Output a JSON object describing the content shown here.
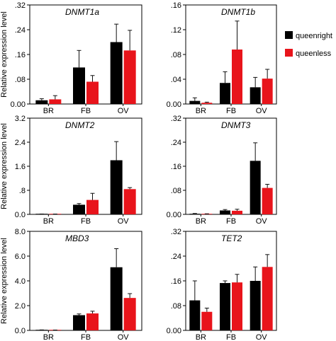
{
  "chart_data": [
    {
      "type": "bar",
      "title": "DNMT1a",
      "ylabel": "Relative expression level",
      "categories": [
        "BR",
        "FB",
        "OV"
      ],
      "ylim": [
        0,
        0.32
      ],
      "yticks": [
        0,
        0.08,
        0.16,
        0.24,
        0.32
      ],
      "yticklabels": [
        "0.00",
        ".08",
        ".16",
        ".24",
        ".32"
      ],
      "series": [
        {
          "name": "queenright",
          "values": [
            0.012,
            0.118,
            0.2
          ],
          "errors": [
            0.005,
            0.055,
            0.058
          ]
        },
        {
          "name": "queenless",
          "values": [
            0.015,
            0.072,
            0.173
          ],
          "errors": [
            0.012,
            0.02,
            0.065
          ]
        }
      ]
    },
    {
      "type": "bar",
      "title": "DNMT1b",
      "ylabel": "",
      "categories": [
        "BR",
        "FB",
        "OV"
      ],
      "ylim": [
        0,
        0.16
      ],
      "yticks": [
        0,
        0.04,
        0.08,
        0.12,
        0.16
      ],
      "yticklabels": [
        "0.00",
        ".04",
        ".08",
        ".12",
        ".16"
      ],
      "series": [
        {
          "name": "queenright",
          "values": [
            0.005,
            0.034,
            0.027
          ],
          "errors": [
            0.005,
            0.018,
            0.016
          ]
        },
        {
          "name": "queenless",
          "values": [
            0.002,
            0.088,
            0.041
          ],
          "errors": [
            0.001,
            0.046,
            0.015
          ]
        }
      ]
    },
    {
      "type": "bar",
      "title": "DNMT2",
      "ylabel": "Relative expression level",
      "categories": [
        "BR",
        "FB",
        "OV"
      ],
      "ylim": [
        0,
        3.2
      ],
      "yticks": [
        0,
        0.8,
        1.6,
        2.4,
        3.2
      ],
      "yticklabels": [
        "0.0",
        ".8",
        "1.6",
        "2.4",
        "3.2"
      ],
      "series": [
        {
          "name": "queenright",
          "values": [
            0.01,
            0.32,
            1.8
          ],
          "errors": [
            0.003,
            0.04,
            0.62
          ]
        },
        {
          "name": "queenless",
          "values": [
            0.008,
            0.48,
            0.84
          ],
          "errors": [
            0.003,
            0.22,
            0.05
          ]
        }
      ]
    },
    {
      "type": "bar",
      "title": "DNMT3",
      "ylabel": "",
      "categories": [
        "BR",
        "FB",
        "OV"
      ],
      "ylim": [
        0,
        0.32
      ],
      "yticks": [
        0,
        0.08,
        0.16,
        0.24,
        0.32
      ],
      "yticklabels": [
        "0.00",
        ".08",
        ".16",
        ".24",
        ".32"
      ],
      "series": [
        {
          "name": "queenright",
          "values": [
            0.002,
            0.013,
            0.178
          ],
          "errors": [
            0.001,
            0.003,
            0.06
          ]
        },
        {
          "name": "queenless",
          "values": [
            0.001,
            0.012,
            0.088
          ],
          "errors": [
            0.001,
            0.005,
            0.012
          ]
        }
      ]
    },
    {
      "type": "bar",
      "title": "MBD3",
      "ylabel": "Relative expression level",
      "categories": [
        "BR",
        "FB",
        "OV"
      ],
      "ylim": [
        0,
        8.0
      ],
      "yticks": [
        0,
        2,
        4,
        6,
        8
      ],
      "yticklabels": [
        "0.0",
        "2.0",
        "4.0",
        "6.0",
        "8.0"
      ],
      "series": [
        {
          "name": "queenright",
          "values": [
            0.03,
            1.23,
            5.1
          ],
          "errors": [
            0.01,
            0.1,
            1.5
          ]
        },
        {
          "name": "queenless",
          "values": [
            0.02,
            1.37,
            2.62
          ],
          "errors": [
            0.01,
            0.18,
            0.35
          ]
        }
      ]
    },
    {
      "type": "bar",
      "title": "TET2",
      "ylabel": "",
      "categories": [
        "BR",
        "FB",
        "OV"
      ],
      "ylim": [
        0,
        0.32
      ],
      "yticks": [
        0,
        0.08,
        0.16,
        0.24,
        0.32
      ],
      "yticklabels": [
        "0.00",
        ".08",
        ".16",
        ".24",
        ".32"
      ],
      "series": [
        {
          "name": "queenright",
          "values": [
            0.097,
            0.153,
            0.16
          ],
          "errors": [
            0.063,
            0.007,
            0.045
          ]
        },
        {
          "name": "queenless",
          "values": [
            0.06,
            0.155,
            0.205
          ],
          "errors": [
            0.012,
            0.026,
            0.04
          ]
        }
      ]
    }
  ],
  "legend": [
    {
      "label": "queenright",
      "color": "#000000"
    },
    {
      "label": "queenless",
      "color": "#e8141b"
    }
  ],
  "colors": {
    "queenright": "#000000",
    "queenless": "#e8141b",
    "error": "#111111"
  }
}
